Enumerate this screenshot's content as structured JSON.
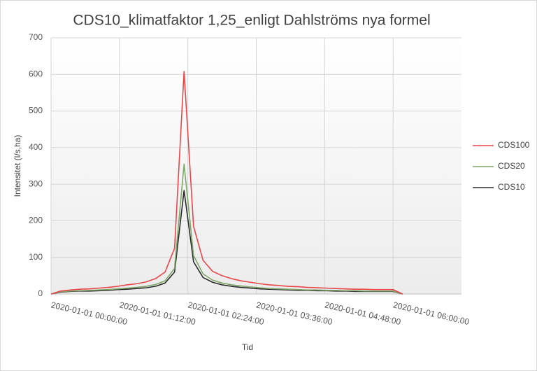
{
  "chart_data": {
    "type": "line",
    "title": "CDS10_klimatfaktor 1,25_enligt Dahlströms nya formel",
    "x_label": "Tid",
    "y_label": "Intensitet (l/s,ha)",
    "x": [
      "2020-01-01 00:00:00",
      "2020-01-01 00:10:00",
      "2020-01-01 00:20:00",
      "2020-01-01 00:30:00",
      "2020-01-01 00:40:00",
      "2020-01-01 00:50:00",
      "2020-01-01 01:00:00",
      "2020-01-01 01:10:00",
      "2020-01-01 01:20:00",
      "2020-01-01 01:30:00",
      "2020-01-01 01:40:00",
      "2020-01-01 01:50:00",
      "2020-01-01 02:00:00",
      "2020-01-01 02:10:00",
      "2020-01-01 02:20:00",
      "2020-01-01 02:30:00",
      "2020-01-01 02:40:00",
      "2020-01-01 02:50:00",
      "2020-01-01 03:00:00",
      "2020-01-01 03:10:00",
      "2020-01-01 03:20:00",
      "2020-01-01 03:30:00",
      "2020-01-01 03:40:00",
      "2020-01-01 03:50:00",
      "2020-01-01 04:00:00",
      "2020-01-01 04:10:00",
      "2020-01-01 04:20:00",
      "2020-01-01 04:30:00",
      "2020-01-01 04:40:00",
      "2020-01-01 04:50:00",
      "2020-01-01 05:00:00",
      "2020-01-01 05:10:00",
      "2020-01-01 05:20:00",
      "2020-01-01 05:30:00",
      "2020-01-01 05:40:00",
      "2020-01-01 05:50:00",
      "2020-01-01 06:00:00",
      "2020-01-01 06:10:00"
    ],
    "series": [
      {
        "name": "CDS100",
        "color": "#e8474a",
        "values": [
          0,
          8,
          11,
          13,
          14,
          16,
          18,
          21,
          25,
          28,
          33,
          42,
          60,
          125,
          608,
          185,
          92,
          62,
          50,
          42,
          36,
          32,
          28,
          25,
          23,
          21,
          20,
          18,
          17,
          16,
          15,
          14,
          13,
          13,
          12,
          12,
          12,
          0
        ]
      },
      {
        "name": "CDS20",
        "color": "#7fa66a",
        "values": [
          0,
          6,
          8,
          9,
          10,
          11,
          12,
          14,
          16,
          18,
          21,
          26,
          36,
          70,
          355,
          105,
          55,
          38,
          30,
          25,
          22,
          19,
          17,
          15,
          14,
          13,
          12,
          11,
          11,
          10,
          10,
          9,
          9,
          8,
          8,
          8,
          8,
          0
        ]
      },
      {
        "name": "CDS10",
        "color": "#2b2b2b",
        "values": [
          0,
          5,
          7,
          8,
          8,
          9,
          10,
          12,
          13,
          15,
          17,
          21,
          30,
          60,
          283,
          88,
          45,
          32,
          25,
          21,
          18,
          16,
          14,
          13,
          12,
          11,
          10,
          10,
          9,
          9,
          8,
          8,
          7,
          7,
          7,
          7,
          7,
          0
        ]
      }
    ],
    "xlim": [
      "2020-01-01 00:00:00",
      "2020-01-01 07:12:00"
    ],
    "xticks": [
      "2020-01-01 00:00:00",
      "2020-01-01 01:12:00",
      "2020-01-01 02:24:00",
      "2020-01-01 03:36:00",
      "2020-01-01 04:48:00",
      "2020-01-01 06:00:00"
    ],
    "ylim": [
      0,
      700
    ],
    "yticks": [
      0,
      100,
      200,
      300,
      400,
      500,
      600,
      700
    ],
    "grid": true,
    "legend": "right"
  }
}
